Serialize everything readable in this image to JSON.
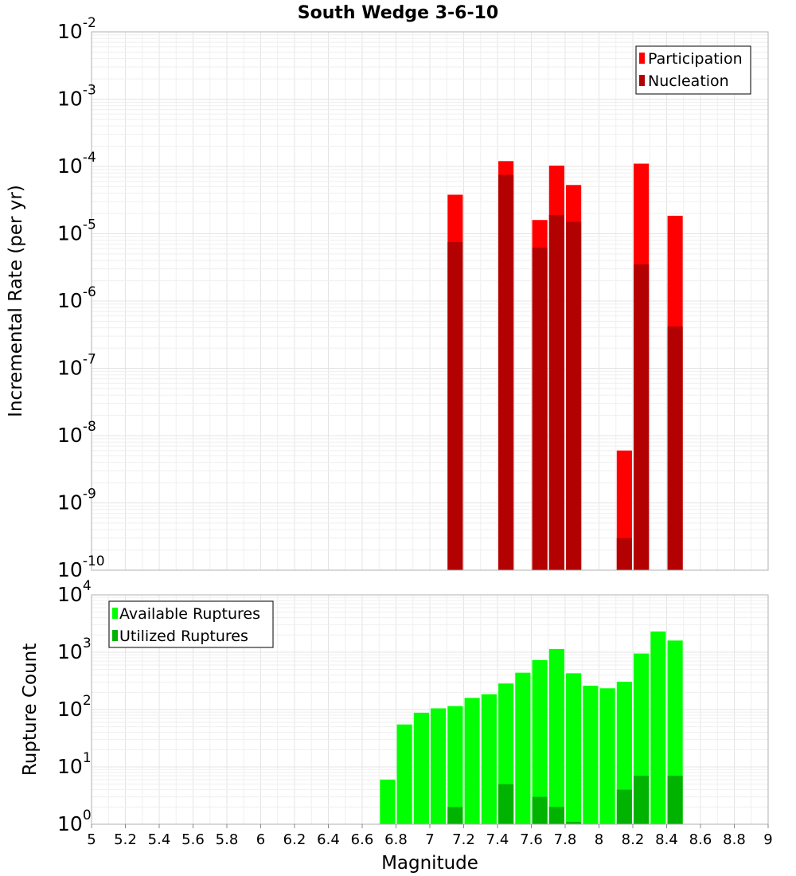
{
  "chart_data": [
    {
      "type": "bar",
      "title": "South Wedge 3-6-10",
      "xlabel": "",
      "ylabel": "Incremental Rate (per yr)",
      "yscale": "log",
      "ylim": [
        1e-10,
        0.01
      ],
      "xlim": [
        5,
        9
      ],
      "grid": true,
      "legend_position": "top-right",
      "bar_width": 0.09,
      "x": [
        7.15,
        7.45,
        7.65,
        7.75,
        7.85,
        8.15,
        8.25,
        8.45
      ],
      "series": [
        {
          "name": "Participation",
          "color": "#ff0000",
          "values": [
            3.8e-05,
            0.00012,
            1.6e-05,
            0.000103,
            5.3e-05,
            6e-09,
            0.00011,
            1.85e-05
          ]
        },
        {
          "name": "Nucleation",
          "color": "#b30000",
          "values": [
            7.5e-06,
            7.5e-05,
            6.2e-06,
            1.9e-05,
            1.5e-05,
            3e-10,
            3.5e-06,
            4.2e-07
          ]
        }
      ]
    },
    {
      "type": "bar",
      "title": "",
      "xlabel": "Magnitude",
      "ylabel": "Rupture Count",
      "yscale": "log",
      "ylim": [
        1,
        10000
      ],
      "xlim": [
        5,
        9
      ],
      "x_ticks": [
        "5",
        "5.2",
        "5.4",
        "5.6",
        "5.8",
        "6",
        "6.2",
        "6.4",
        "6.6",
        "6.8",
        "7",
        "7.2",
        "7.4",
        "7.6",
        "7.8",
        "8",
        "8.2",
        "8.4",
        "8.6",
        "8.8",
        "9"
      ],
      "grid": true,
      "legend_position": "top-left",
      "bar_width": 0.09,
      "x": [
        6.75,
        6.85,
        6.95,
        7.05,
        7.15,
        7.25,
        7.35,
        7.45,
        7.55,
        7.65,
        7.75,
        7.85,
        7.95,
        8.05,
        8.15,
        8.25,
        8.35,
        8.45
      ],
      "series": [
        {
          "name": "Available Ruptures",
          "color": "#00ff00",
          "values": [
            6,
            55,
            88,
            105,
            115,
            160,
            185,
            285,
            440,
            730,
            1140,
            430,
            260,
            235,
            305,
            950,
            2300,
            1600
          ]
        },
        {
          "name": "Utilized Ruptures",
          "color": "#00b300",
          "values": [
            0,
            0,
            0,
            0,
            2,
            0,
            0,
            5,
            0,
            3,
            2,
            1.1,
            0,
            0,
            4,
            7,
            0,
            7
          ]
        }
      ]
    }
  ]
}
